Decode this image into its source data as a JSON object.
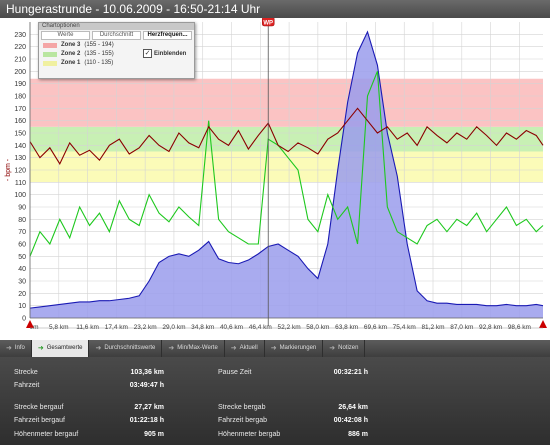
{
  "window_title": "Hungerastrunde - 10.06.2009 - 16:50-21:14 Uhr",
  "marker_label": "WP",
  "options_panel": {
    "title": "Chartoptionen",
    "tabs": [
      "Werte",
      "Durchschnitt",
      "Herzfrequen..."
    ],
    "zones": [
      {
        "label": "Zone 3",
        "range": "(155 - 194)",
        "color": "#f4a6a6"
      },
      {
        "label": "Zone 2",
        "range": "(135 - 155)",
        "color": "#b9e6a0"
      },
      {
        "label": "Zone 1",
        "range": "(110 - 135)",
        "color": "#f0f0a0"
      }
    ],
    "checkbox_label": "Einblenden",
    "checkbox_checked": true
  },
  "tabs": [
    {
      "label": "Info",
      "active": false
    },
    {
      "label": "Gesamtwerte",
      "active": true
    },
    {
      "label": "Durchschnittswerte",
      "active": false
    },
    {
      "label": "Min/Max-Werte",
      "active": false
    },
    {
      "label": "Aktuell",
      "active": false
    },
    {
      "label": "Markierungen",
      "active": false
    },
    {
      "label": "Notizen",
      "active": false
    }
  ],
  "stats": {
    "strecke_label": "Strecke",
    "strecke_value": "103,36 km",
    "fahrzeit_label": "Fahrzeit",
    "fahrzeit_value": "03:49:47 h",
    "pause_label": "Pause Zeit",
    "pause_value": "00:32:21 h",
    "strecke_bergauf_label": "Strecke bergauf",
    "strecke_bergauf_value": "27,27 km",
    "fahrzeit_bergauf_label": "Fahrzeit bergauf",
    "fahrzeit_bergauf_value": "01:22:18 h",
    "hoehenmeter_bergauf_label": "Höhenmeter bergauf",
    "hoehenmeter_bergauf_value": "905 m",
    "strecke_bergab_label": "Strecke bergab",
    "strecke_bergab_value": "26,64 km",
    "fahrzeit_bergab_label": "Fahrzeit bergab",
    "fahrzeit_bergab_value": "00:42:08 h",
    "hoehenmeter_bergab_label": "Höhenmeter bergab",
    "hoehenmeter_bergab_value": "886 m"
  },
  "chart_data": {
    "type": "line",
    "title": "",
    "ylabel": "- bpm -",
    "ylim": [
      0,
      240
    ],
    "yticks": [
      0,
      10,
      20,
      30,
      40,
      50,
      60,
      70,
      80,
      90,
      100,
      110,
      120,
      130,
      140,
      150,
      160,
      170,
      180,
      190,
      200,
      210,
      220,
      230
    ],
    "xlim": [
      0,
      103.36
    ],
    "xticks": [
      0,
      5.8,
      11.6,
      17.4,
      23.2,
      29.0,
      34.8,
      40.6,
      46.4,
      52.2,
      58.0,
      63.8,
      69.6,
      75.4,
      81.2,
      87.0,
      92.8,
      98.6
    ],
    "xtick_labels": [
      "0m",
      "5,8 km",
      "11,6 km",
      "17,4 km",
      "23,2 km",
      "29,0 km",
      "34,8 km",
      "40,6 km",
      "46,4 km",
      "52,2 km",
      "58,0 km",
      "63,8 km",
      "69,6 km",
      "75,4 km",
      "81,2 km",
      "87,0 km",
      "92,8 km",
      "98,6 km"
    ],
    "grid": true,
    "zones": [
      {
        "name": "Zone 1",
        "from": 110,
        "to": 135,
        "color": "#fbfbb8"
      },
      {
        "name": "Zone 2",
        "from": 135,
        "to": 155,
        "color": "#c8f0b4"
      },
      {
        "name": "Zone 3",
        "from": 155,
        "to": 194,
        "color": "#fbc3c3"
      }
    ],
    "marker_x": 48.0,
    "series": [
      {
        "color": "#8b0000",
        "kind": "line",
        "x": [
          0,
          2,
          4,
          6,
          8,
          10,
          12,
          14,
          16,
          18,
          20,
          22,
          24,
          26,
          28,
          30,
          32,
          34,
          36,
          38,
          40,
          42,
          44,
          46,
          48,
          50,
          52,
          54,
          56,
          58,
          60,
          62,
          64,
          66,
          68,
          70,
          72,
          74,
          76,
          78,
          80,
          82,
          84,
          86,
          88,
          90,
          92,
          94,
          96,
          98,
          100,
          102,
          103.36
        ],
        "values": [
          143,
          130,
          138,
          125,
          142,
          132,
          136,
          128,
          140,
          145,
          133,
          138,
          148,
          140,
          135,
          150,
          142,
          138,
          155,
          145,
          140,
          152,
          137,
          148,
          158,
          140,
          135,
          142,
          138,
          133,
          145,
          150,
          160,
          170,
          160,
          150,
          155,
          145,
          150,
          140,
          155,
          148,
          142,
          150,
          145,
          155,
          148,
          140,
          150,
          145,
          152,
          148,
          140
        ]
      },
      {
        "color": "#1ec81e",
        "kind": "line",
        "x": [
          0,
          2,
          4,
          6,
          8,
          10,
          12,
          14,
          16,
          18,
          20,
          22,
          24,
          26,
          28,
          30,
          32,
          34,
          36,
          38,
          40,
          42,
          44,
          46,
          48,
          50,
          52,
          54,
          56,
          58,
          60,
          62,
          64,
          66,
          68,
          70,
          72,
          74,
          76,
          78,
          80,
          82,
          84,
          86,
          88,
          90,
          92,
          94,
          96,
          98,
          100,
          102,
          103.36
        ],
        "values": [
          50,
          70,
          60,
          80,
          65,
          90,
          75,
          85,
          70,
          95,
          80,
          75,
          100,
          85,
          78,
          90,
          82,
          75,
          160,
          80,
          70,
          65,
          60,
          60,
          145,
          140,
          130,
          120,
          80,
          70,
          100,
          80,
          90,
          60,
          180,
          200,
          90,
          70,
          65,
          60,
          75,
          80,
          70,
          80,
          75,
          85,
          70,
          80,
          90,
          75,
          80,
          70,
          75
        ]
      },
      {
        "color": "#1a1ab4",
        "kind": "area",
        "fill": "#9a9cec",
        "x": [
          0,
          2,
          4,
          6,
          8,
          10,
          12,
          14,
          16,
          18,
          20,
          22,
          24,
          26,
          28,
          30,
          32,
          34,
          36,
          38,
          40,
          42,
          44,
          46,
          48,
          50,
          52,
          54,
          56,
          58,
          60,
          62,
          64,
          66,
          68,
          70,
          72,
          74,
          76,
          78,
          80,
          82,
          84,
          86,
          88,
          90,
          92,
          94,
          96,
          98,
          100,
          102,
          103.36
        ],
        "values": [
          8,
          9,
          10,
          11,
          12,
          13,
          13,
          14,
          14,
          15,
          16,
          18,
          30,
          45,
          50,
          52,
          50,
          55,
          62,
          48,
          45,
          44,
          47,
          52,
          58,
          60,
          55,
          50,
          40,
          32,
          60,
          120,
          175,
          215,
          232,
          205,
          150,
          115,
          60,
          22,
          14,
          12,
          12,
          11,
          11,
          11,
          10,
          10,
          11,
          10,
          10,
          11,
          10
        ]
      }
    ]
  }
}
